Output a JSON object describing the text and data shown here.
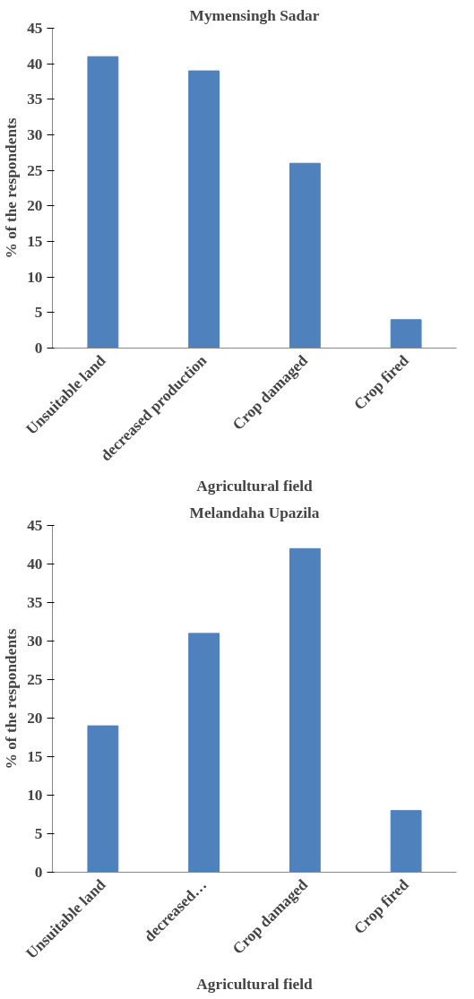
{
  "chart_data": [
    {
      "type": "bar",
      "title": "Mymensingh Sadar",
      "xlabel": "Agricultural field",
      "ylabel": "% of the respondents",
      "categories": [
        "Unsuitable land",
        "decreased production",
        "Crop damaged",
        "Crop fired"
      ],
      "values": [
        41,
        39,
        26,
        4
      ],
      "color": "#4f81bd",
      "ylim": [
        0,
        45
      ],
      "yticks": [
        0,
        5,
        10,
        15,
        20,
        25,
        30,
        35,
        40,
        45
      ],
      "grid": false
    },
    {
      "type": "bar",
      "title": "Melandaha Upazila",
      "xlabel": "Agricultural field",
      "ylabel": "% of the respondents",
      "categories": [
        "Unsuitable land",
        "decreased…",
        "Crop damaged",
        "Crop fired"
      ],
      "values": [
        19,
        31,
        42,
        8
      ],
      "color": "#4f81bd",
      "ylim": [
        0,
        45
      ],
      "yticks": [
        0,
        5,
        10,
        15,
        20,
        25,
        30,
        35,
        40,
        45
      ],
      "grid": false
    }
  ]
}
